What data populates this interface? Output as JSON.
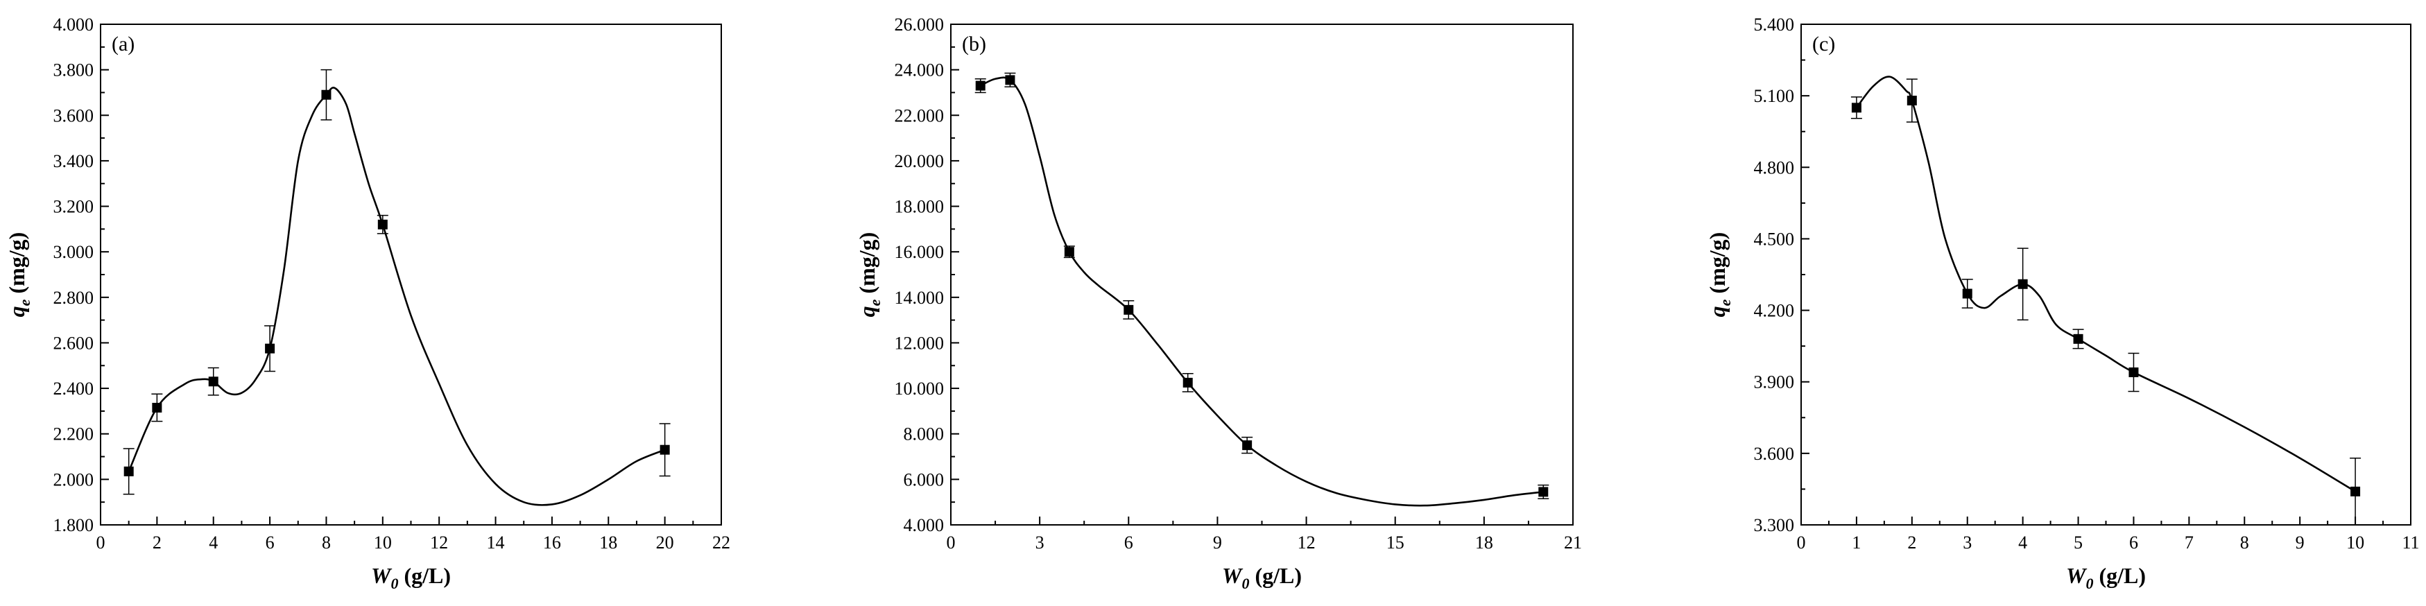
{
  "chart_data": [
    {
      "type": "scatter",
      "panel_label": "(a)",
      "xlabel_main": "W",
      "xlabel_sub": "0",
      "xlabel_unit": " (g/L)",
      "ylabel_main": "q",
      "ylabel_sub": "e",
      "ylabel_unit": " (mg/g)",
      "xlim": [
        0,
        22
      ],
      "ylim": [
        1.8,
        4.0
      ],
      "xticks": [
        0,
        2,
        4,
        6,
        8,
        10,
        12,
        14,
        16,
        18,
        20,
        22
      ],
      "xtick_labels": [
        "0",
        "2",
        "4",
        "6",
        "8",
        "10",
        "12",
        "14",
        "16",
        "18",
        "20",
        "22"
      ],
      "yticks": [
        1.8,
        2.0,
        2.2,
        2.4,
        2.6,
        2.8,
        3.0,
        3.2,
        3.4,
        3.6,
        3.8,
        4.0
      ],
      "ytick_labels": [
        "1.800",
        "2.000",
        "2.200",
        "2.400",
        "2.600",
        "2.800",
        "3.000",
        "3.200",
        "3.400",
        "3.600",
        "3.800",
        "4.000"
      ],
      "series": [
        {
          "x": [
            1,
            2,
            4,
            6,
            8,
            10,
            20
          ],
          "y": [
            2.035,
            2.315,
            2.43,
            2.575,
            3.69,
            3.12,
            2.13
          ],
          "err": [
            0.1,
            0.06,
            0.06,
            0.1,
            0.11,
            0.04,
            0.115
          ]
        }
      ],
      "fit_curve": {
        "x": [
          1,
          2,
          3,
          3.6,
          4,
          4.5,
          5,
          5.5,
          6,
          6.5,
          7,
          7.5,
          8,
          8.3,
          8.7,
          9,
          9.5,
          10,
          11,
          12,
          13,
          14,
          15,
          16,
          17,
          18,
          19,
          20
        ],
        "y": [
          2.035,
          2.315,
          2.42,
          2.44,
          2.43,
          2.38,
          2.38,
          2.44,
          2.575,
          2.92,
          3.4,
          3.6,
          3.69,
          3.72,
          3.65,
          3.52,
          3.3,
          3.12,
          2.72,
          2.42,
          2.15,
          1.98,
          1.9,
          1.89,
          1.93,
          2.0,
          2.08,
          2.13
        ]
      },
      "grid": false,
      "legend": "none"
    },
    {
      "type": "scatter",
      "panel_label": "(b)",
      "xlabel_main": "W",
      "xlabel_sub": "0",
      "xlabel_unit": " (g/L)",
      "ylabel_main": "q",
      "ylabel_sub": "e",
      "ylabel_unit": " (mg/g)",
      "xlim": [
        0,
        21
      ],
      "ylim": [
        4,
        26
      ],
      "xticks": [
        0,
        3,
        6,
        9,
        12,
        15,
        18,
        21
      ],
      "xtick_labels": [
        "0",
        "3",
        "6",
        "9",
        "12",
        "15",
        "18",
        "21"
      ],
      "yticks": [
        4,
        6,
        8,
        10,
        12,
        14,
        16,
        18,
        20,
        22,
        24,
        26
      ],
      "ytick_labels": [
        "4.000",
        "6.000",
        "8.000",
        "10.000",
        "12.000",
        "14.000",
        "16.000",
        "18.000",
        "20.000",
        "22.000",
        "24.000",
        "26.000"
      ],
      "series": [
        {
          "x": [
            1,
            2,
            4,
            6,
            8,
            10,
            20
          ],
          "y": [
            23.3,
            23.55,
            16.0,
            13.45,
            10.25,
            7.5,
            5.45
          ],
          "err": [
            0.3,
            0.3,
            0.25,
            0.4,
            0.4,
            0.35,
            0.3
          ]
        }
      ],
      "fit_curve": {
        "x": [
          1,
          1.5,
          2,
          2.5,
          3,
          3.5,
          4,
          4.5,
          5,
          6,
          7,
          8,
          9,
          10,
          11,
          12,
          13,
          14,
          15,
          16,
          17,
          18,
          19,
          20
        ],
        "y": [
          23.3,
          23.6,
          23.55,
          22.5,
          20.2,
          17.6,
          16.0,
          15.1,
          14.5,
          13.45,
          11.9,
          10.25,
          8.8,
          7.5,
          6.6,
          5.9,
          5.4,
          5.1,
          4.9,
          4.85,
          4.95,
          5.1,
          5.3,
          5.45
        ]
      },
      "grid": false,
      "legend": "none"
    },
    {
      "type": "scatter",
      "panel_label": "(c)",
      "xlabel_main": "W",
      "xlabel_sub": "0",
      "xlabel_unit": " (g/L)",
      "ylabel_main": "q",
      "ylabel_sub": "e",
      "ylabel_unit": " (mg/g)",
      "xlim": [
        0,
        11
      ],
      "ylim": [
        3.3,
        5.4
      ],
      "xticks": [
        0,
        1,
        2,
        3,
        4,
        5,
        6,
        7,
        8,
        9,
        10,
        11
      ],
      "xtick_labels": [
        "0",
        "1",
        "2",
        "3",
        "4",
        "5",
        "6",
        "7",
        "8",
        "9",
        "10",
        "11"
      ],
      "yticks": [
        3.3,
        3.6,
        3.9,
        4.2,
        4.5,
        4.8,
        5.1,
        5.4
      ],
      "ytick_labels": [
        "3.300",
        "3.600",
        "3.900",
        "4.200",
        "4.500",
        "4.800",
        "5.100",
        "5.400"
      ],
      "series": [
        {
          "x": [
            1,
            2,
            3,
            4,
            5,
            6,
            10
          ],
          "y": [
            5.05,
            5.08,
            4.27,
            4.31,
            4.08,
            3.94,
            3.44
          ],
          "err": [
            0.045,
            0.09,
            0.06,
            0.15,
            0.04,
            0.08,
            0.14
          ]
        }
      ],
      "fit_curve": {
        "x": [
          1,
          1.3,
          1.6,
          1.9,
          2,
          2.3,
          2.6,
          3,
          3.3,
          3.6,
          4,
          4.3,
          4.6,
          5,
          5.5,
          6,
          7,
          8,
          9,
          10
        ],
        "y": [
          5.05,
          5.14,
          5.18,
          5.12,
          5.08,
          4.82,
          4.5,
          4.27,
          4.21,
          4.26,
          4.31,
          4.26,
          4.14,
          4.08,
          4.01,
          3.94,
          3.83,
          3.71,
          3.58,
          3.44
        ]
      },
      "grid": false,
      "legend": "none"
    }
  ]
}
